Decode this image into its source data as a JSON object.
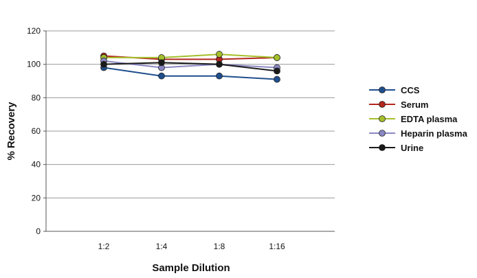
{
  "chart_data": {
    "type": "line",
    "xlabel": "Sample Dilution",
    "ylabel": "% Recovery",
    "categories": [
      "1:2",
      "1:4",
      "1:8",
      "1:16"
    ],
    "ylim": [
      0,
      120
    ],
    "yticks": [
      0,
      20,
      40,
      60,
      80,
      100,
      120
    ],
    "grid": true,
    "legend_position": "right",
    "series": [
      {
        "name": "CCS",
        "color": "#1f4e8c",
        "values": [
          98,
          93,
          93,
          91
        ]
      },
      {
        "name": "Serum",
        "color": "#b3261e",
        "values": [
          105,
          103,
          103,
          104
        ]
      },
      {
        "name": "EDTA plasma",
        "color": "#a4bf2b",
        "values": [
          104,
          104,
          106,
          104
        ]
      },
      {
        "name": "Heparin plasma",
        "color": "#8a88c4",
        "values": [
          102,
          98,
          100,
          98
        ]
      },
      {
        "name": "Urine",
        "color": "#1a1a1a",
        "values": [
          100,
          101,
          100,
          96
        ]
      }
    ]
  }
}
